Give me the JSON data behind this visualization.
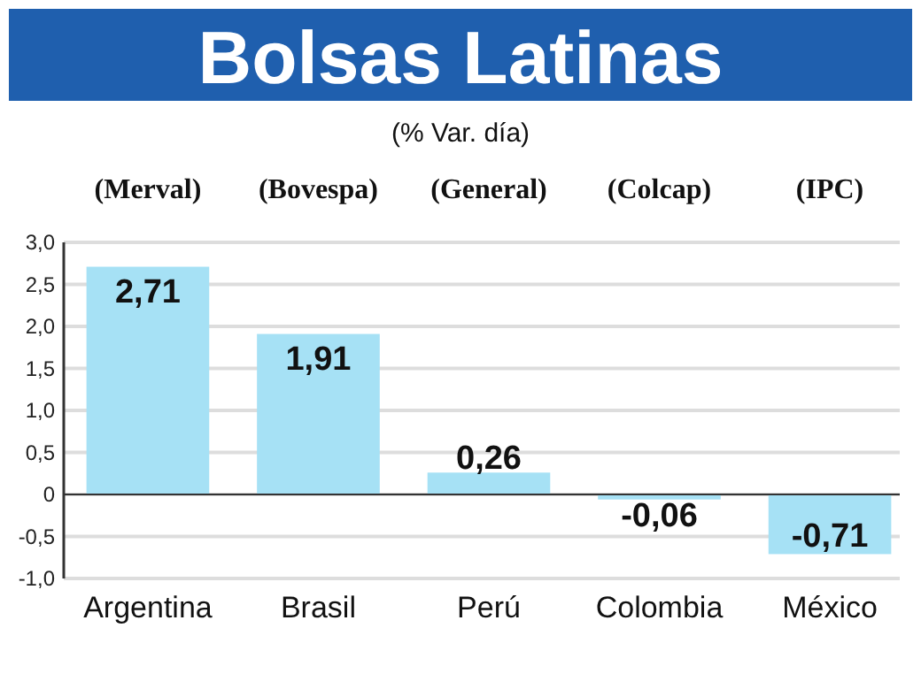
{
  "chart_data": {
    "type": "bar",
    "title": "Bolsas Latinas",
    "subtitle": "(% Var. día)",
    "categories": [
      "Argentina",
      "Brasil",
      "Perú",
      "Colombia",
      "México"
    ],
    "values": [
      2.71,
      1.91,
      0.26,
      -0.06,
      -0.71
    ],
    "value_labels": [
      "2,71",
      "1,91",
      "0,26",
      "-0,06",
      "-0,71"
    ],
    "color": "#a6e1f5",
    "ylim": [
      -1,
      3
    ],
    "yticks": [
      {
        "value": -1,
        "label": "-1,0"
      },
      {
        "value": -0.5,
        "label": "-0,5"
      },
      0,
      {
        "value": 0.5,
        "label": "0,5"
      },
      {
        "value": 1,
        "label": "1,0"
      },
      {
        "value": 1.5,
        "label": "1,5"
      },
      {
        "value": 2,
        "label": "2,0"
      },
      {
        "value": 2.5,
        "label": "2,5"
      },
      {
        "value": 3,
        "label": "3,0"
      }
    ],
    "grid": "y",
    "annotations": [
      "(Merval)",
      "(Bovespa)",
      "(General)",
      "(Colcap)",
      "(IPC)"
    ]
  }
}
